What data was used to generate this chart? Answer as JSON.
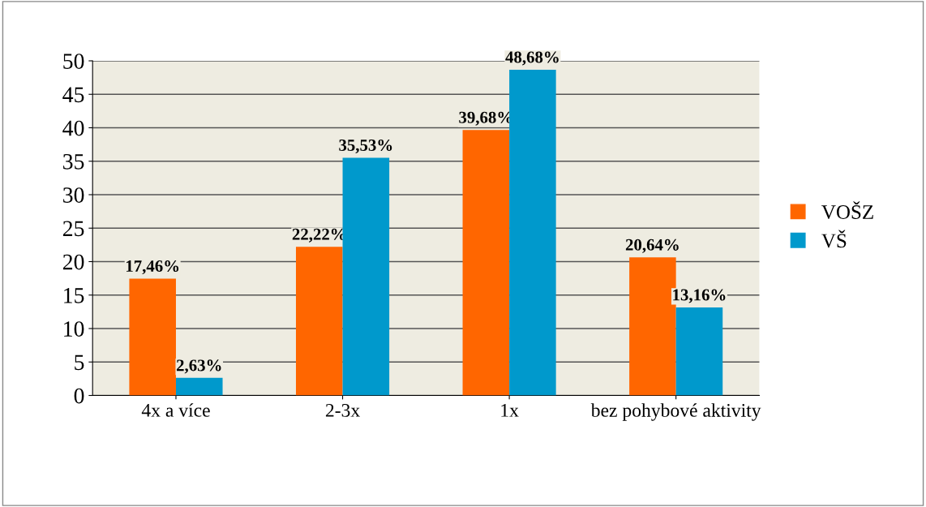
{
  "chart_data": {
    "type": "bar",
    "categories": [
      "4x a více",
      "2-3x",
      "1x",
      "bez pohybové aktivity"
    ],
    "series": [
      {
        "name": "VOŠZ",
        "color": "#ff6600",
        "values": [
          17.46,
          22.22,
          39.68,
          20.64
        ],
        "value_labels": [
          "17,46%",
          "22,22%",
          "39,68%",
          "20,64%"
        ]
      },
      {
        "name": "VŠ",
        "color": "#0099cc",
        "values": [
          2.63,
          35.53,
          48.68,
          13.16
        ],
        "value_labels": [
          "2,63%",
          "35,53%",
          "48,68%",
          "13,16%"
        ]
      }
    ],
    "ylim": [
      0,
      50
    ],
    "yticks": [
      0,
      5,
      10,
      15,
      20,
      25,
      30,
      35,
      40,
      45,
      50
    ],
    "grid": "y",
    "legend": "right"
  }
}
